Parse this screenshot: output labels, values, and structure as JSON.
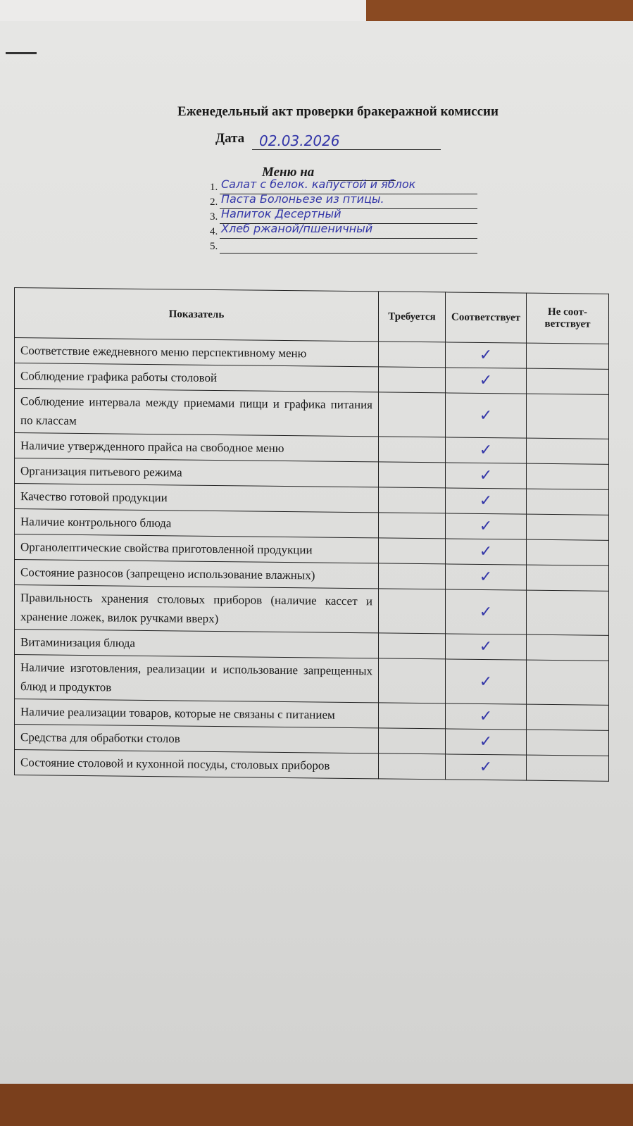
{
  "document": {
    "title": "Еженедельный акт проверки бракеражной комиссии",
    "date_label": "Дата",
    "date_value": "02.03.2026",
    "menu_label": "Меню на",
    "menu": [
      {
        "num": "1.",
        "value": "Салат с белок. капустой и яблок"
      },
      {
        "num": "2.",
        "value": "Паста Болоньезе из птицы."
      },
      {
        "num": "3.",
        "value": "Напиток Десертный"
      },
      {
        "num": "4.",
        "value": "Хлеб ржаной/пшеничный"
      },
      {
        "num": "5.",
        "value": ""
      }
    ],
    "table": {
      "headers": [
        "Показатель",
        "Требуется",
        "Соответствует",
        "Не соот-ветствует"
      ],
      "check_mark": "✓",
      "rows": [
        {
          "indicator": "Соответствие ежедневного меню перспективному меню",
          "complies": "✓"
        },
        {
          "indicator": "Соблюдение графика работы столовой",
          "complies": "✓"
        },
        {
          "indicator": "Соблюдение интервала между приемами пищи и графика питания по классам",
          "complies": "✓"
        },
        {
          "indicator": "Наличие утвержденного прайса на свободное меню",
          "complies": "✓"
        },
        {
          "indicator": "Организация питьевого режима",
          "complies": "✓"
        },
        {
          "indicator": "Качество готовой продукции",
          "complies": "✓"
        },
        {
          "indicator": "Наличие контрольного блюда",
          "complies": "✓"
        },
        {
          "indicator": "Органолептические свойства приготовленной продукции",
          "complies": "✓"
        },
        {
          "indicator": "Состояние разносов (запрещено использование влажных)",
          "complies": "✓"
        },
        {
          "indicator": "Правильность хранения столовых приборов (наличие кассет и хранение ложек, вилок ручками вверх)",
          "complies": "✓"
        },
        {
          "indicator": "Витаминизация блюда",
          "complies": "✓"
        },
        {
          "indicator": "Наличие изготовления, реализации и использование запрещенных блюд и продуктов",
          "complies": "✓"
        },
        {
          "indicator": "Наличие реализации товаров, которые не связаны с питанием",
          "complies": "✓"
        },
        {
          "indicator": "Средства для обработки столов",
          "complies": "✓"
        },
        {
          "indicator": "Состояние столовой и кухонной посуды, столовых приборов",
          "complies": "✓"
        }
      ]
    }
  }
}
